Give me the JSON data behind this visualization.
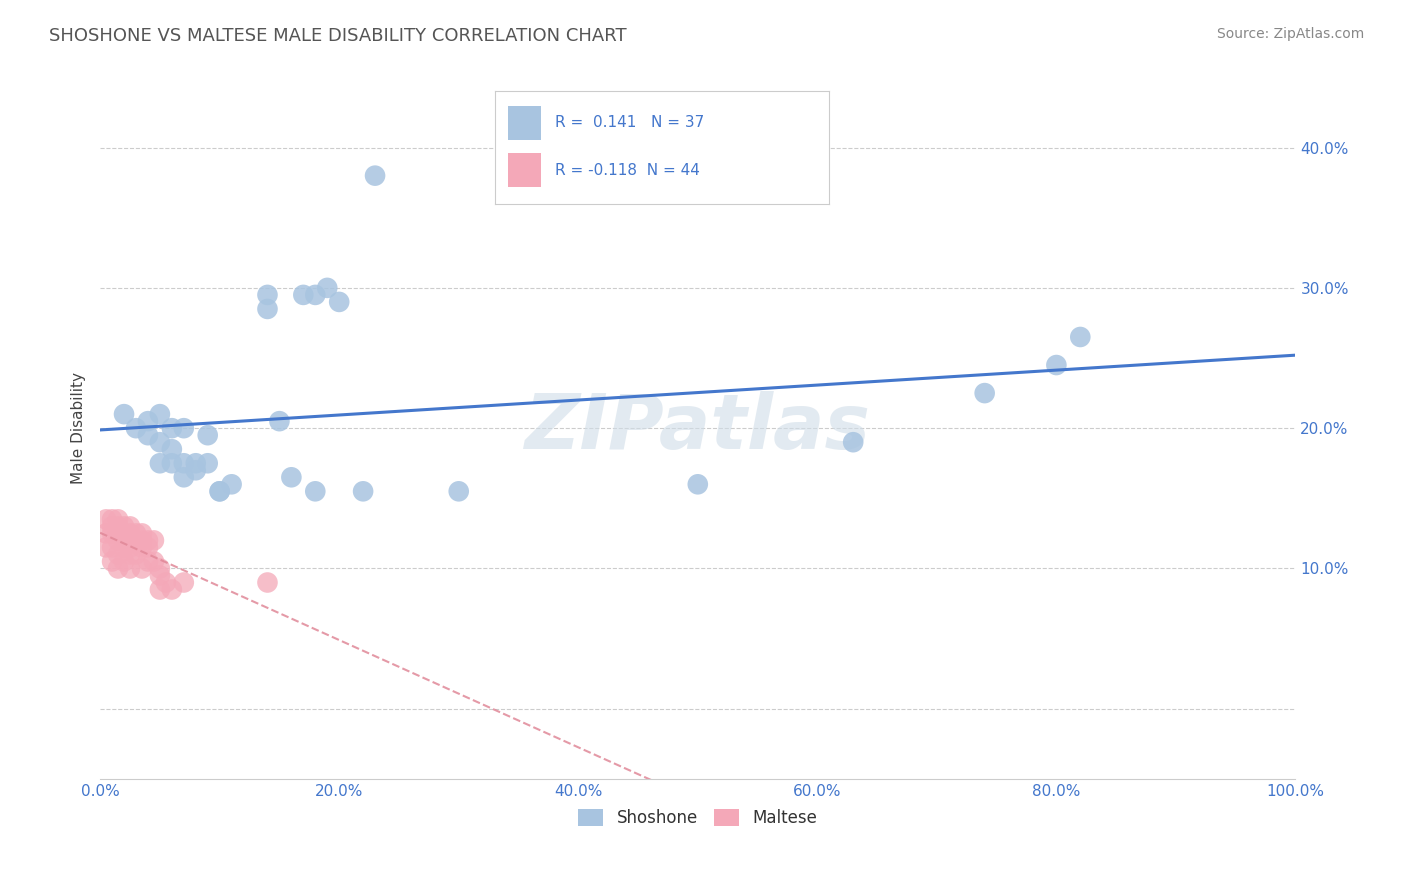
{
  "title": "SHOSHONE VS MALTESE MALE DISABILITY CORRELATION CHART",
  "source": "Source: ZipAtlas.com",
  "ylabel": "Male Disability",
  "watermark": "ZIPatlas",
  "shoshone_color": "#a8c4e0",
  "maltese_color": "#f4a8b8",
  "shoshone_line_color": "#4477cc",
  "maltese_line_color": "#e08898",
  "R_shoshone": 0.141,
  "N_shoshone": 37,
  "R_maltese": -0.118,
  "N_maltese": 44,
  "xlim": [
    0.0,
    1.0
  ],
  "ylim": [
    -0.05,
    0.45
  ],
  "grid_color": "#cccccc",
  "background_color": "#ffffff",
  "title_color": "#555555",
  "legend_text_color": "#4477cc",
  "tick_label_color": "#4477cc",
  "shoshone_x": [
    0.02,
    0.03,
    0.04,
    0.04,
    0.05,
    0.05,
    0.05,
    0.06,
    0.06,
    0.06,
    0.07,
    0.07,
    0.07,
    0.08,
    0.08,
    0.09,
    0.09,
    0.1,
    0.1,
    0.11,
    0.14,
    0.14,
    0.15,
    0.16,
    0.17,
    0.18,
    0.18,
    0.19,
    0.2,
    0.22,
    0.23,
    0.5,
    0.63,
    0.74,
    0.8,
    0.82,
    0.3
  ],
  "shoshone_y": [
    0.21,
    0.2,
    0.205,
    0.195,
    0.21,
    0.175,
    0.19,
    0.2,
    0.175,
    0.185,
    0.175,
    0.165,
    0.2,
    0.175,
    0.17,
    0.195,
    0.175,
    0.155,
    0.155,
    0.16,
    0.285,
    0.295,
    0.205,
    0.165,
    0.295,
    0.155,
    0.295,
    0.3,
    0.29,
    0.155,
    0.38,
    0.16,
    0.19,
    0.225,
    0.245,
    0.265,
    0.155
  ],
  "maltese_x": [
    0.005,
    0.005,
    0.005,
    0.01,
    0.01,
    0.01,
    0.01,
    0.01,
    0.015,
    0.015,
    0.015,
    0.015,
    0.015,
    0.015,
    0.02,
    0.02,
    0.02,
    0.02,
    0.02,
    0.025,
    0.025,
    0.025,
    0.025,
    0.025,
    0.025,
    0.03,
    0.03,
    0.03,
    0.035,
    0.035,
    0.035,
    0.035,
    0.04,
    0.04,
    0.04,
    0.045,
    0.045,
    0.05,
    0.05,
    0.05,
    0.055,
    0.06,
    0.07,
    0.14
  ],
  "maltese_y": [
    0.135,
    0.125,
    0.115,
    0.135,
    0.13,
    0.125,
    0.115,
    0.105,
    0.135,
    0.13,
    0.125,
    0.12,
    0.11,
    0.1,
    0.13,
    0.125,
    0.12,
    0.115,
    0.105,
    0.13,
    0.125,
    0.12,
    0.115,
    0.11,
    0.1,
    0.125,
    0.12,
    0.11,
    0.125,
    0.12,
    0.115,
    0.1,
    0.12,
    0.115,
    0.105,
    0.12,
    0.105,
    0.1,
    0.095,
    0.085,
    0.09,
    0.085,
    0.09,
    0.09
  ],
  "ytick_vals": [
    0.0,
    0.1,
    0.2,
    0.3,
    0.4
  ],
  "ytick_labels": [
    "",
    "10.0%",
    "20.0%",
    "30.0%",
    "40.0%"
  ],
  "xtick_vals": [
    0.0,
    0.2,
    0.4,
    0.6,
    0.8,
    1.0
  ],
  "xtick_labels": [
    "0.0%",
    "20.0%",
    "40.0%",
    "60.0%",
    "80.0%",
    "100.0%"
  ]
}
